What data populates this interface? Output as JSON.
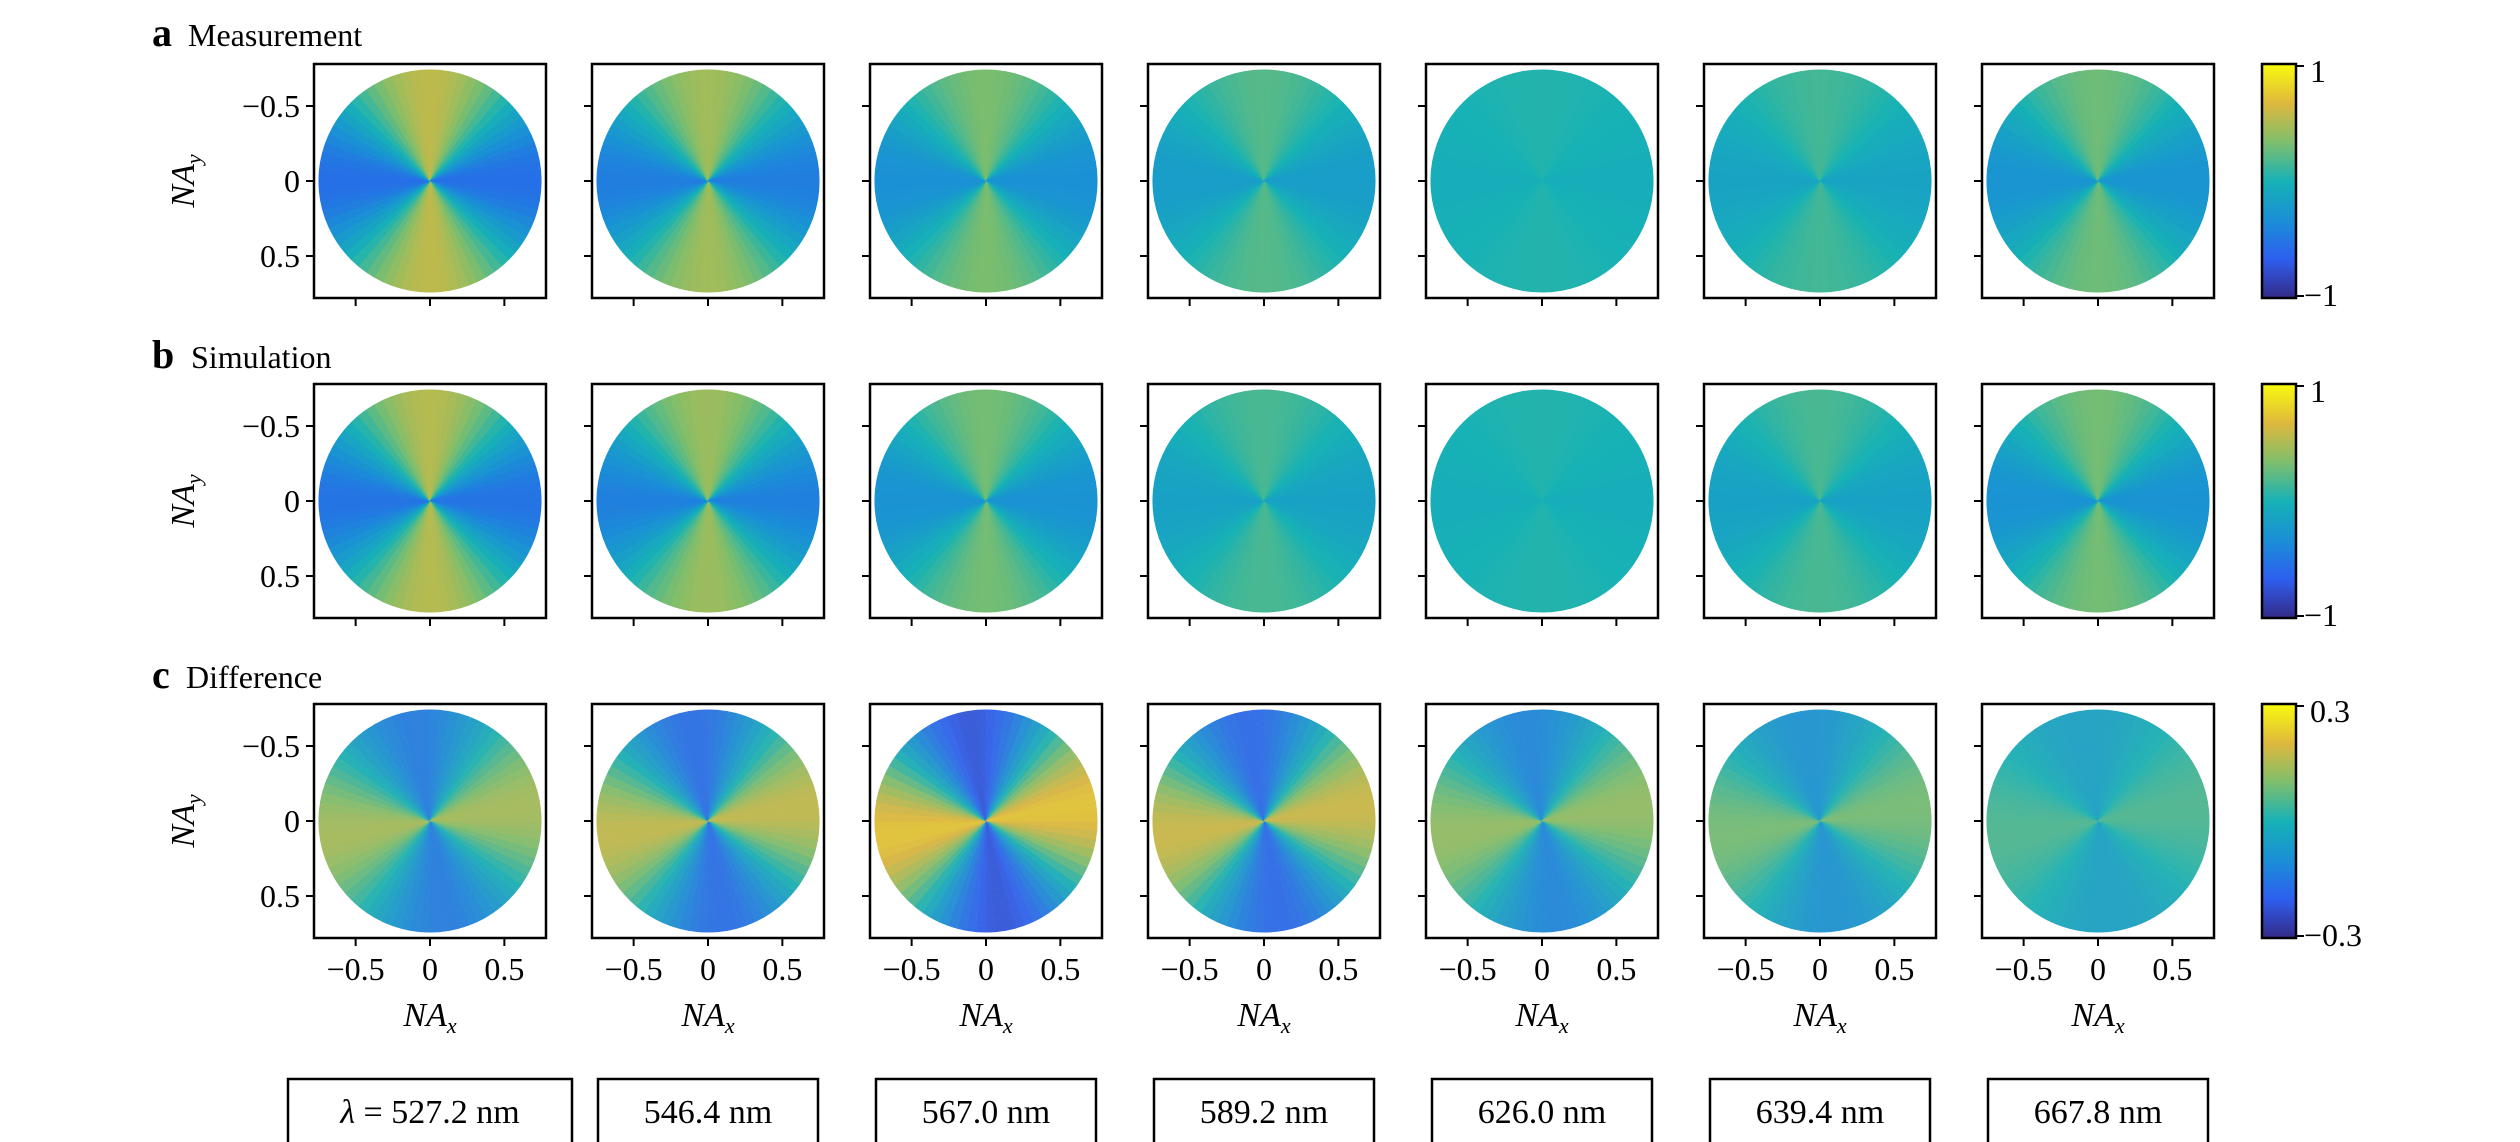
{
  "chart_data": {
    "type": "heatmap",
    "layout": "3 rows x 7 columns of circular pupil maps, one colorbar per row",
    "rows": [
      {
        "letter": "a",
        "title": "Measurement",
        "cbar_ticks": [
          "1",
          "−1"
        ],
        "cbar_range": [
          -1,
          1
        ]
      },
      {
        "letter": "b",
        "title": "Simulation",
        "cbar_ticks": [
          "1",
          "−1"
        ],
        "cbar_range": [
          -1,
          1
        ]
      },
      {
        "letter": "c",
        "title": "Difference",
        "cbar_ticks": [
          "0.3",
          "−0.3"
        ],
        "cbar_range": [
          -0.3,
          0.3
        ]
      }
    ],
    "ylabel": "NA",
    "ylabel_sub": "y",
    "xlabel": "NA",
    "xlabel_sub": "x",
    "y_ticks": [
      "−0.5",
      "0",
      "0.5"
    ],
    "x_ticks": [
      "−0.5",
      "0",
      "0.5"
    ],
    "axis_range": [
      -0.78,
      0.78
    ],
    "pupil_radius_NA": 0.75,
    "wavelengths": [
      "λ = 527.2 nm",
      "546.4 nm",
      "567.0 nm",
      "589.2 nm",
      "626.0 nm",
      "639.4 nm",
      "667.8 nm"
    ],
    "pattern_amplitude": {
      "measurement": [
        0.55,
        0.45,
        0.32,
        0.2,
        0.04,
        0.14,
        0.28
      ],
      "simulation": [
        0.52,
        0.43,
        0.3,
        0.16,
        0.04,
        0.16,
        0.3
      ],
      "difference": [
        0.14,
        0.17,
        0.22,
        0.18,
        0.12,
        0.09,
        0.05
      ]
    },
    "colormap": [
      "#352a87",
      "#2d5ff0",
      "#1a8fd6",
      "#17b2b5",
      "#7fbe6c",
      "#dfb83c",
      "#f9fb0e"
    ]
  }
}
